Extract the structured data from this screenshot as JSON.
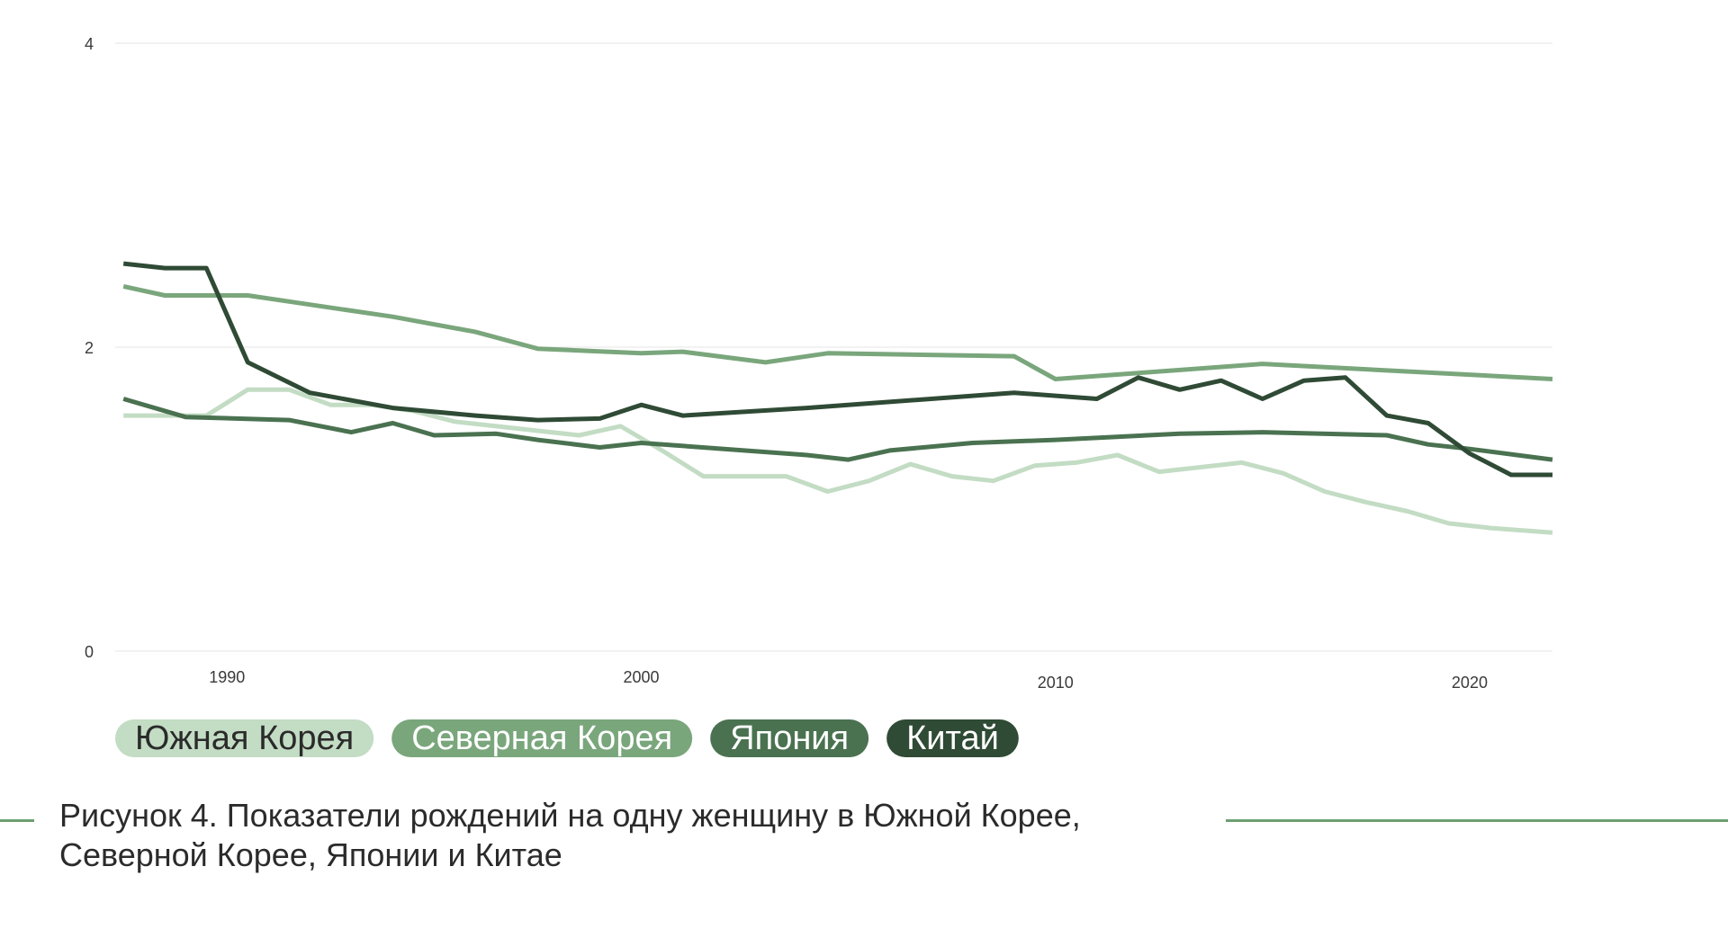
{
  "caption": "Рисунок 4. Показатели рождений на одну женщину в Южной Корее, Северной Корее, Японии и Китае",
  "colors": {
    "south_korea": "#c3dcc4",
    "north_korea": "#7aa67c",
    "japan": "#4a7250",
    "china": "#2f4a35",
    "grid": "#e6e6e6",
    "caption_rule": "#6e9f72"
  },
  "chart_data": {
    "type": "line",
    "title": "",
    "xlabel": "",
    "ylabel": "",
    "xlim": [
      1987.3,
      2022
    ],
    "ylim": [
      0,
      4
    ],
    "yticks": [
      0,
      2,
      4
    ],
    "xticks": [
      {
        "value": 1990,
        "label": "1990"
      },
      {
        "value": 2000,
        "label": "2000"
      },
      {
        "value": 2010,
        "label": "2010"
      },
      {
        "value": 2020,
        "label": "2020"
      }
    ],
    "grid": true,
    "legend": "bottom-left",
    "series": [
      {
        "name": "Южная Корея",
        "color": "#c3dcc4",
        "text_color": "#2b2b2b",
        "points": [
          [
            1987.5,
            1.55
          ],
          [
            1988.5,
            1.55
          ],
          [
            1989.5,
            1.55
          ],
          [
            1990.5,
            1.72
          ],
          [
            1991.5,
            1.72
          ],
          [
            1992.5,
            1.62
          ],
          [
            1993.5,
            1.62
          ],
          [
            1994.5,
            1.58
          ],
          [
            1995.5,
            1.51
          ],
          [
            1996.5,
            1.48
          ],
          [
            1997.5,
            1.45
          ],
          [
            1998.5,
            1.42
          ],
          [
            1999.5,
            1.48
          ],
          [
            2000.5,
            1.32
          ],
          [
            2001.5,
            1.15
          ],
          [
            2002.5,
            1.15
          ],
          [
            2003.5,
            1.15
          ],
          [
            2004.5,
            1.05
          ],
          [
            2005.5,
            1.12
          ],
          [
            2006.5,
            1.23
          ],
          [
            2007.5,
            1.15
          ],
          [
            2008.5,
            1.12
          ],
          [
            2009.5,
            1.22
          ],
          [
            2010.5,
            1.24
          ],
          [
            2011.5,
            1.29
          ],
          [
            2012.5,
            1.18
          ],
          [
            2013.5,
            1.21
          ],
          [
            2014.5,
            1.24
          ],
          [
            2015.5,
            1.17
          ],
          [
            2016.5,
            1.05
          ],
          [
            2017.5,
            0.98
          ],
          [
            2018.5,
            0.92
          ],
          [
            2019.5,
            0.84
          ],
          [
            2020.5,
            0.81
          ],
          [
            2022.0,
            0.78
          ]
        ]
      },
      {
        "name": "Северная Корея",
        "color": "#7aa67c",
        "text_color": "#ffffff",
        "points": [
          [
            1987.5,
            2.4
          ],
          [
            1988.5,
            2.34
          ],
          [
            1989.5,
            2.34
          ],
          [
            1990.5,
            2.34
          ],
          [
            1992.0,
            2.28
          ],
          [
            1994.0,
            2.2
          ],
          [
            1996.0,
            2.1
          ],
          [
            1997.5,
            1.99
          ],
          [
            2000.0,
            1.96
          ],
          [
            2001.0,
            1.97
          ],
          [
            2003.0,
            1.9
          ],
          [
            2004.5,
            1.96
          ],
          [
            2009.0,
            1.94
          ],
          [
            2010.0,
            1.79
          ],
          [
            2012.0,
            1.83
          ],
          [
            2015.0,
            1.89
          ],
          [
            2022.0,
            1.79
          ]
        ]
      },
      {
        "name": "Япония",
        "color": "#4a7250",
        "text_color": "#ffffff",
        "points": [
          [
            1987.5,
            1.66
          ],
          [
            1989.0,
            1.54
          ],
          [
            1991.5,
            1.52
          ],
          [
            1993.0,
            1.44
          ],
          [
            1994.0,
            1.5
          ],
          [
            1995.0,
            1.42
          ],
          [
            1996.5,
            1.43
          ],
          [
            1997.5,
            1.39
          ],
          [
            1999.0,
            1.34
          ],
          [
            2000.0,
            1.37
          ],
          [
            2002.0,
            1.33
          ],
          [
            2004.0,
            1.29
          ],
          [
            2005.0,
            1.26
          ],
          [
            2006.0,
            1.32
          ],
          [
            2008.0,
            1.37
          ],
          [
            2010.0,
            1.39
          ],
          [
            2013.0,
            1.43
          ],
          [
            2015.0,
            1.44
          ],
          [
            2018.0,
            1.42
          ],
          [
            2019.0,
            1.36
          ],
          [
            2020.0,
            1.33
          ],
          [
            2022.0,
            1.26
          ]
        ]
      },
      {
        "name": "Китай",
        "color": "#2f4a35",
        "text_color": "#ffffff",
        "points": [
          [
            1987.5,
            2.55
          ],
          [
            1988.5,
            2.52
          ],
          [
            1989.5,
            2.52
          ],
          [
            1990.5,
            1.9
          ],
          [
            1992.0,
            1.7
          ],
          [
            1994.0,
            1.6
          ],
          [
            1996.0,
            1.55
          ],
          [
            1997.5,
            1.52
          ],
          [
            1999.0,
            1.53
          ],
          [
            2000.0,
            1.62
          ],
          [
            2001.0,
            1.55
          ],
          [
            2004.0,
            1.6
          ],
          [
            2009.0,
            1.7
          ],
          [
            2011.0,
            1.66
          ],
          [
            2012.0,
            1.8
          ],
          [
            2013.0,
            1.72
          ],
          [
            2014.0,
            1.78
          ],
          [
            2015.0,
            1.66
          ],
          [
            2016.0,
            1.78
          ],
          [
            2017.0,
            1.8
          ],
          [
            2018.0,
            1.55
          ],
          [
            2019.0,
            1.5
          ],
          [
            2020.0,
            1.3
          ],
          [
            2021.0,
            1.16
          ],
          [
            2022.0,
            1.16
          ]
        ]
      }
    ]
  }
}
